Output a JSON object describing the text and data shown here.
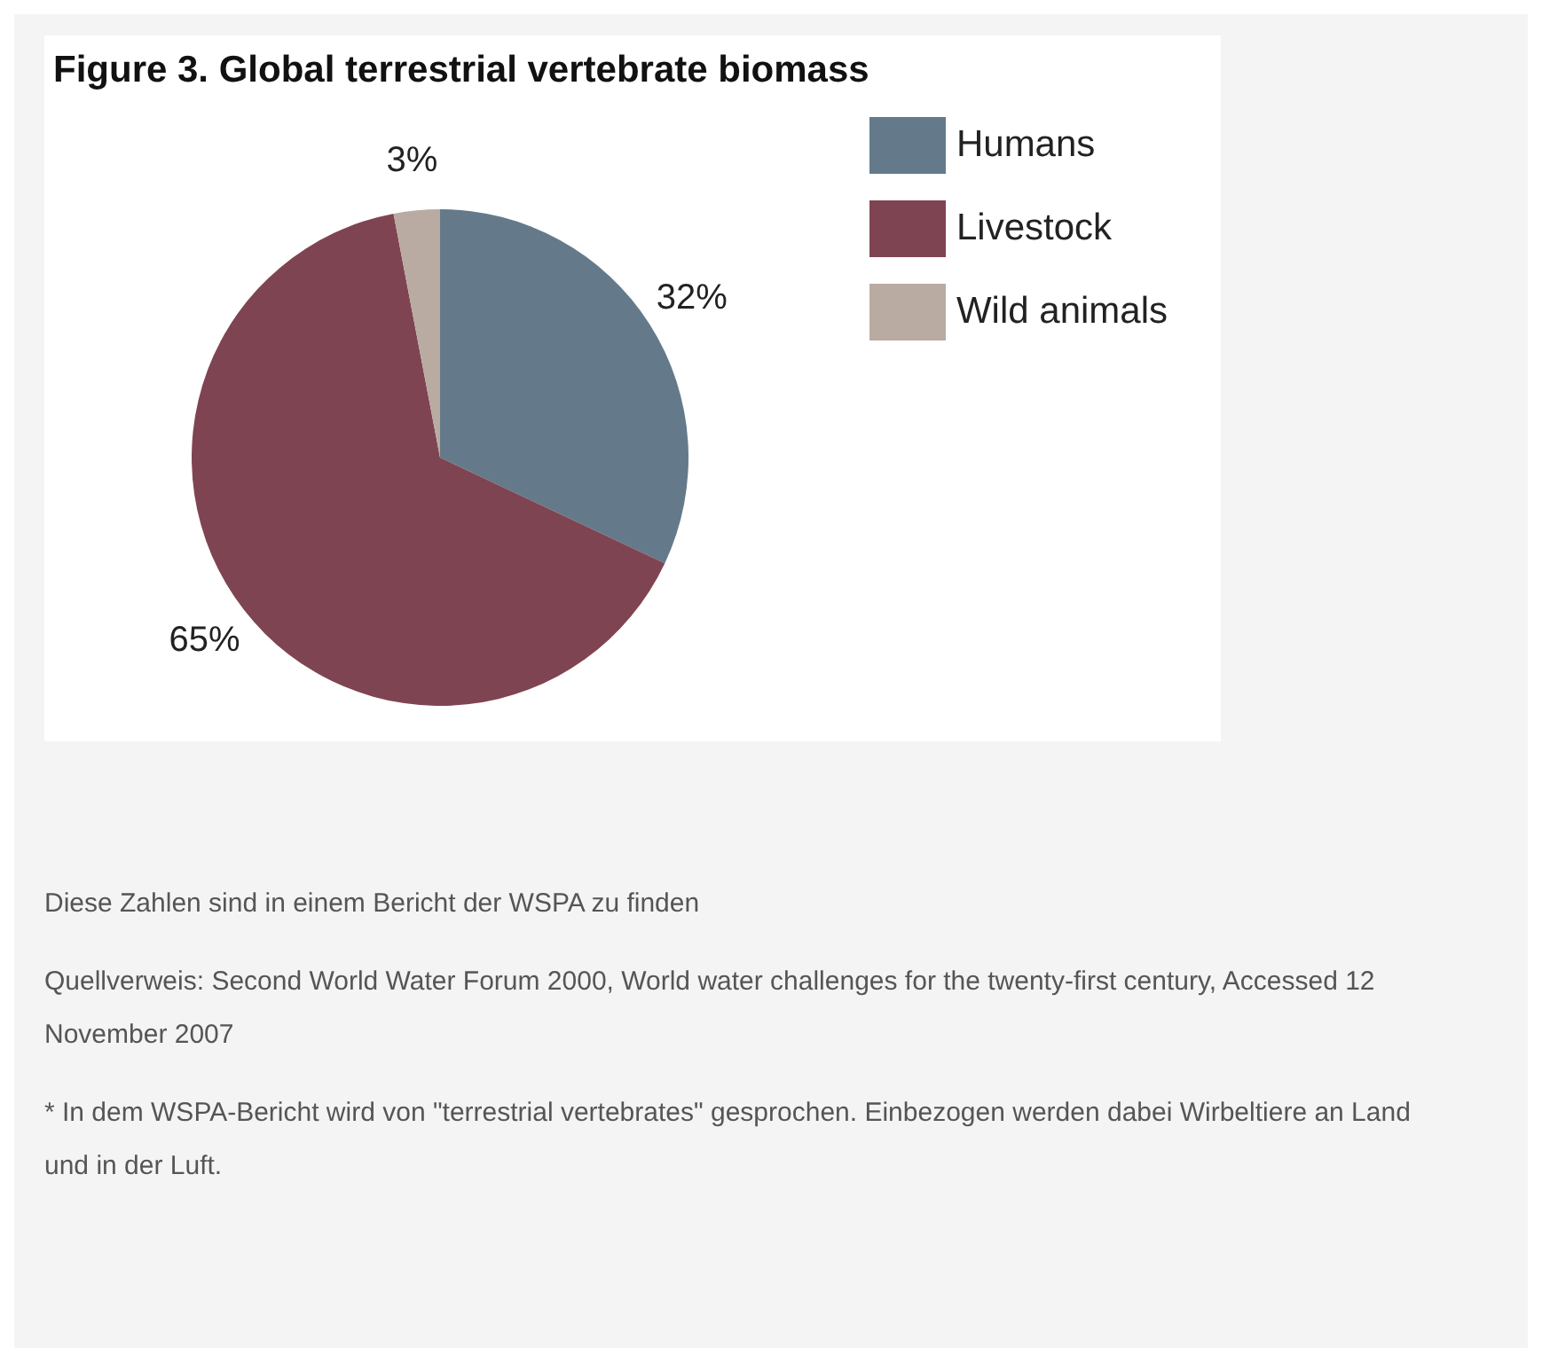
{
  "chart_data": {
    "type": "pie",
    "title": "Figure 3. Global terrestrial vertebrate biomass",
    "categories": [
      "Humans",
      "Livestock",
      "Wild animals"
    ],
    "values": [
      32,
      65,
      3
    ],
    "value_labels": [
      "32%",
      "65%",
      "3%"
    ],
    "colors": [
      "#647a8a",
      "#7f4452",
      "#b9aba2"
    ],
    "legend": "top right",
    "annotations": [
      "Diese Zahlen sind in einem Bericht der WSPA zu finden",
      "Quellverweis: Second World Water Forum 2000, World water challenges for the twenty-first century, Accessed 12 November 2007",
      "* In dem WSPA-Bericht wird von \"terrestrial vertebrates\" gesprochen. Einbezogen werden dabei Wirbeltiere an Land und in der Luft."
    ]
  }
}
